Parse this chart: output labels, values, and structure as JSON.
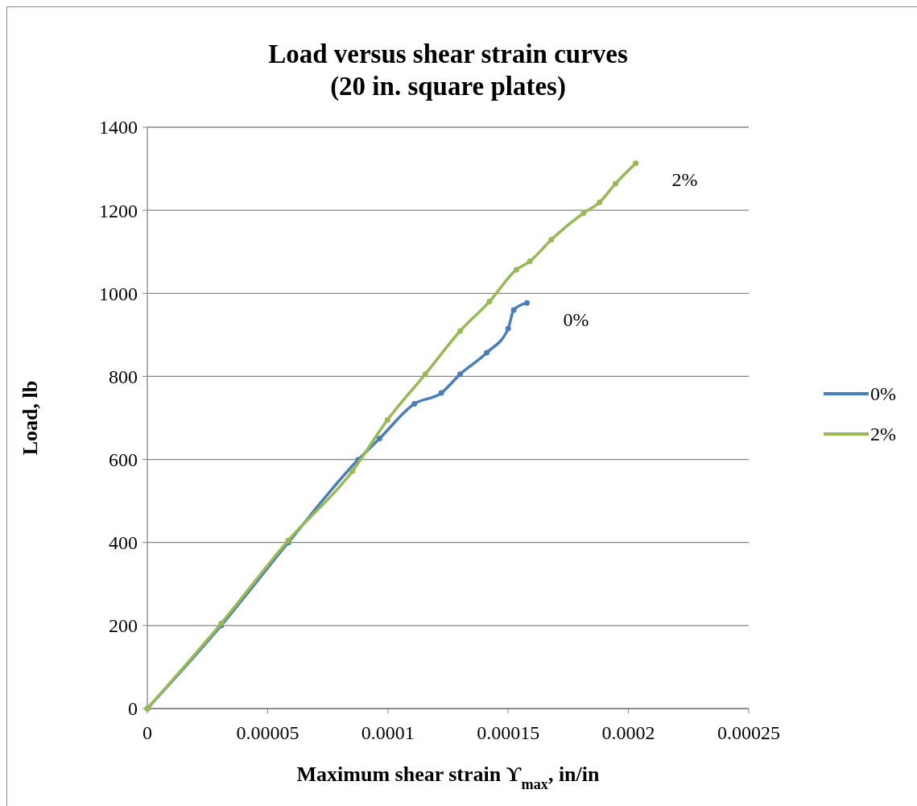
{
  "chart_data": {
    "type": "line",
    "title": "Load versus shear strain curves\n(20 in. square plates)",
    "xlabel": "Maximum shear strain ϒ$_{max}$,  in/in",
    "ylabel": "Load,  lb",
    "xlim": [
      0,
      0.00025
    ],
    "xticks": [
      0,
      {
        "value": 5e-05,
        "label": "0.00005"
      },
      0.0001,
      0.00015,
      0.0002,
      0.00025
    ],
    "ylim": [
      0,
      1400
    ],
    "yticks": [
      0,
      200,
      400,
      600,
      800,
      1000,
      1200,
      1400
    ],
    "grid": "y",
    "legend": "right",
    "marker": "circle",
    "line_style": "solid",
    "series": [
      {
        "name": "0%",
        "color": "#4a7ebb",
        "x": [
          0,
          3.07e-05,
          5.86e-05,
          8.76e-05,
          9.65e-05,
          0.000111,
          0.0001222,
          0.00013,
          0.0001411,
          0.00015,
          0.0001523,
          0.0001578
        ],
        "values": [
          0,
          200,
          400,
          599,
          650,
          734,
          760,
          805,
          857,
          915,
          960,
          977
        ]
      },
      {
        "name": "2%",
        "color": "#98b954",
        "x": [
          0,
          3.07e-05,
          5.86e-05,
          8.53e-05,
          9.98e-05,
          0.0001155,
          0.00013,
          0.0001422,
          0.0001534,
          0.000159,
          0.0001679,
          0.0001813,
          0.000188,
          0.0001946,
          0.000203
        ],
        "values": [
          0,
          205,
          405,
          572,
          695,
          805,
          909,
          980,
          1057,
          1077,
          1129,
          1193,
          1219,
          1264,
          1313
        ]
      }
    ],
    "annotations": [
      "0%",
      "2%"
    ]
  }
}
